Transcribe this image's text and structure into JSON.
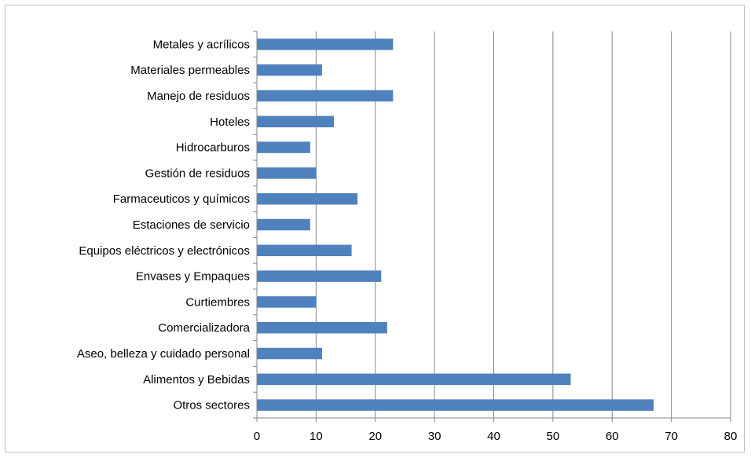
{
  "chart_data": {
    "type": "bar",
    "orientation": "horizontal",
    "title": "",
    "xlabel": "",
    "ylabel": "",
    "categories": [
      "Otros sectores",
      "Alimentos y Bebidas",
      "Aseo, belleza y cuidado personal",
      "Comercializadora",
      "Curtiembres",
      "Envases y Empaques",
      "Equipos eléctricos y electrónicos",
      "Estaciones de servicio",
      "Farmaceuticos y químicos",
      "Gestión de residuos",
      "Hidrocarburos",
      "Hoteles",
      "Manejo de residuos",
      "Materiales permeables",
      "Metales y acrílicos"
    ],
    "values": [
      67,
      53,
      11,
      22,
      10,
      21,
      16,
      9,
      17,
      10,
      9,
      13,
      23,
      11,
      23
    ],
    "xlim": [
      0,
      80
    ],
    "xticks": [
      0,
      10,
      20,
      30,
      40,
      50,
      60,
      70,
      80
    ],
    "grid": "vertical",
    "legend": "none",
    "bar_color": "#4f81bd",
    "grid_color": "#868686"
  }
}
